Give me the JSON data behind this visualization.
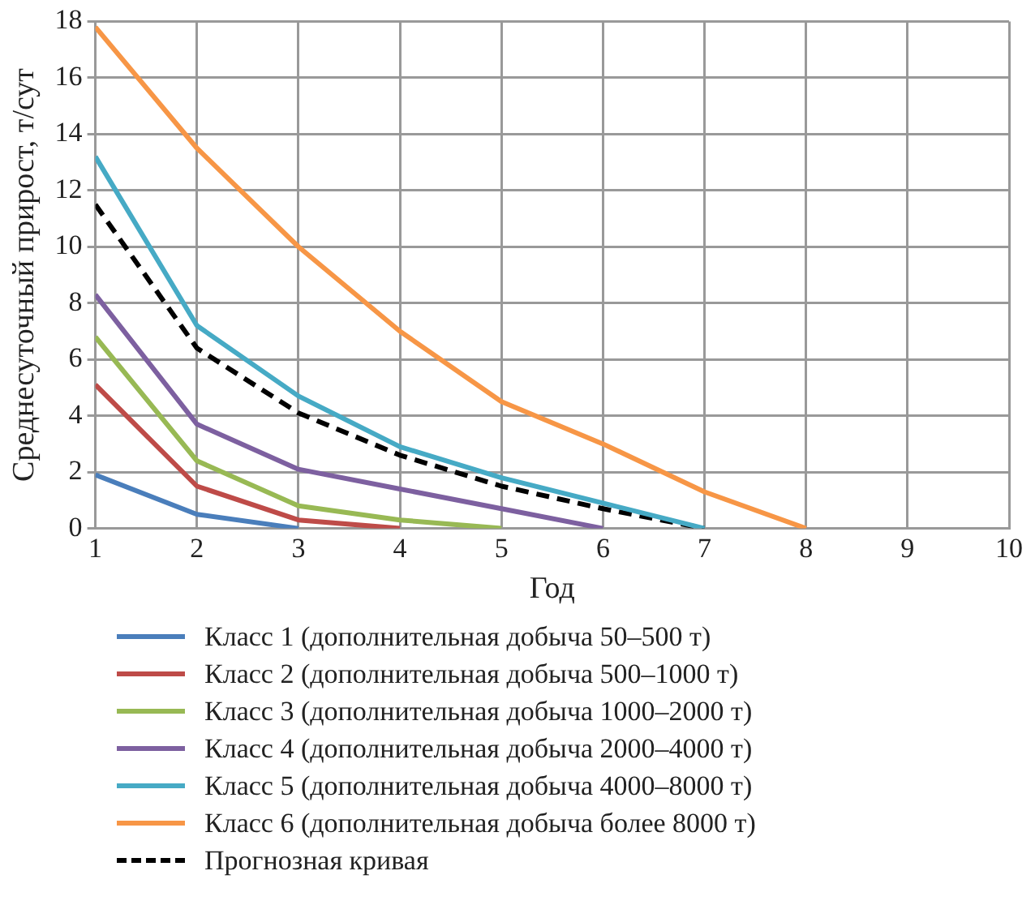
{
  "chart_data": {
    "type": "line",
    "xlabel": "Год",
    "ylabel": "Среднесуточный прирост, т/сут",
    "xlim": [
      1,
      10
    ],
    "xticks": [
      1,
      2,
      3,
      4,
      5,
      6,
      7,
      8,
      9,
      10
    ],
    "ylim": [
      0,
      18
    ],
    "yticks": [
      0,
      2,
      4,
      6,
      8,
      10,
      12,
      14,
      16,
      18
    ],
    "grid": true,
    "legend": "bottom",
    "marker": "none",
    "line_style": "solid",
    "series": [
      {
        "name": "Класс 1 (дополнительная добыча 50–500 т)",
        "color": "#4a7ebb",
        "x": [
          1,
          2,
          3
        ],
        "values": [
          1.9,
          0.5,
          0
        ]
      },
      {
        "name": "Класс 2 (дополнительная добыча 500–1000 т)",
        "color": "#be4b48",
        "x": [
          1,
          2,
          3,
          4
        ],
        "values": [
          5.1,
          1.5,
          0.3,
          0
        ]
      },
      {
        "name": "Класс 3 (дополнительная добыча 1000–2000 т)",
        "color": "#98b954",
        "x": [
          1,
          2,
          3,
          4,
          5
        ],
        "values": [
          6.8,
          2.4,
          0.8,
          0.3,
          0
        ]
      },
      {
        "name": "Класс 4 (дополнительная добыча 2000–4000 т)",
        "color": "#7d60a0",
        "x": [
          1,
          2,
          3,
          4,
          5,
          6
        ],
        "values": [
          8.3,
          3.7,
          2.1,
          1.4,
          0.7,
          0
        ]
      },
      {
        "name": "Класс 5 (дополнительная добыча 4000–8000 т)",
        "color": "#46aac5",
        "x": [
          1,
          2,
          3,
          4,
          5,
          6,
          7
        ],
        "values": [
          13.2,
          7.2,
          4.7,
          2.9,
          1.8,
          0.9,
          0
        ]
      },
      {
        "name": "Класс 6 (дополнительная добыча более 8000 т)",
        "color": "#f79646",
        "x": [
          1,
          2,
          3,
          4,
          5,
          6,
          7,
          8
        ],
        "values": [
          17.8,
          13.5,
          10.0,
          7.0,
          4.5,
          3.0,
          1.3,
          0
        ]
      },
      {
        "name": "Прогнозная кривая",
        "color": "#000000",
        "line_style": "dashed",
        "x": [
          1,
          2,
          3,
          4,
          5,
          6,
          7
        ],
        "values": [
          11.5,
          6.4,
          4.1,
          2.6,
          1.5,
          0.7,
          0
        ]
      }
    ]
  }
}
